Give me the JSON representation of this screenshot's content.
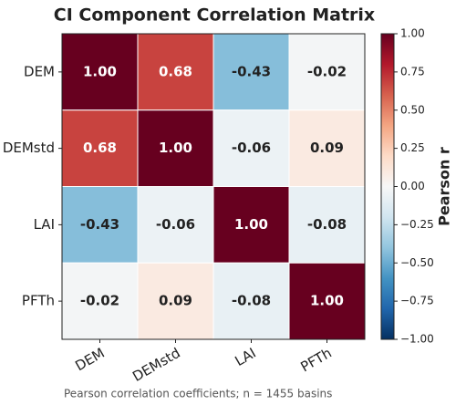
{
  "chart_data": {
    "type": "heatmap",
    "title": "CI Component Correlation Matrix",
    "x_categories": [
      "DEM",
      "DEMstd",
      "LAI",
      "PFTh"
    ],
    "y_categories": [
      "DEM",
      "DEMstd",
      "LAI",
      "PFTh"
    ],
    "values": [
      [
        1.0,
        0.68,
        -0.43,
        -0.02
      ],
      [
        0.68,
        1.0,
        -0.06,
        0.09
      ],
      [
        -0.43,
        -0.06,
        1.0,
        -0.08
      ],
      [
        -0.02,
        0.09,
        -0.08,
        1.0
      ]
    ],
    "value_labels": [
      [
        "1.00",
        "0.68",
        "-0.43",
        "-0.02"
      ],
      [
        "0.68",
        "1.00",
        "-0.06",
        "0.09"
      ],
      [
        "-0.43",
        "-0.06",
        "1.00",
        "-0.08"
      ],
      [
        "-0.02",
        "0.09",
        "-0.08",
        "1.00"
      ]
    ],
    "colormap": [
      "#053061",
      "#2166ac",
      "#4393c3",
      "#92c5de",
      "#d1e5f0",
      "#f7f7f7",
      "#fddbc7",
      "#f4a582",
      "#d6604d",
      "#b2182b",
      "#67001f"
    ],
    "clim": [
      -1,
      1
    ],
    "colorbar_ticks": [
      {
        "value": 1,
        "label": "1.00"
      },
      {
        "value": 0.75,
        "label": "0.75"
      },
      {
        "value": 0.5,
        "label": "0.50"
      },
      {
        "value": 0.25,
        "label": "0.25"
      },
      {
        "value": 0,
        "label": "0.00"
      },
      {
        "value": -0.25,
        "label": "−0.25"
      },
      {
        "value": -0.5,
        "label": "−0.50"
      },
      {
        "value": -0.75,
        "label": "−0.75"
      },
      {
        "value": -1,
        "label": "−1.00"
      }
    ],
    "colorbar_label": "Pearson r",
    "footnote": "Pearson correlation coefficients; n = 1455 basins"
  }
}
